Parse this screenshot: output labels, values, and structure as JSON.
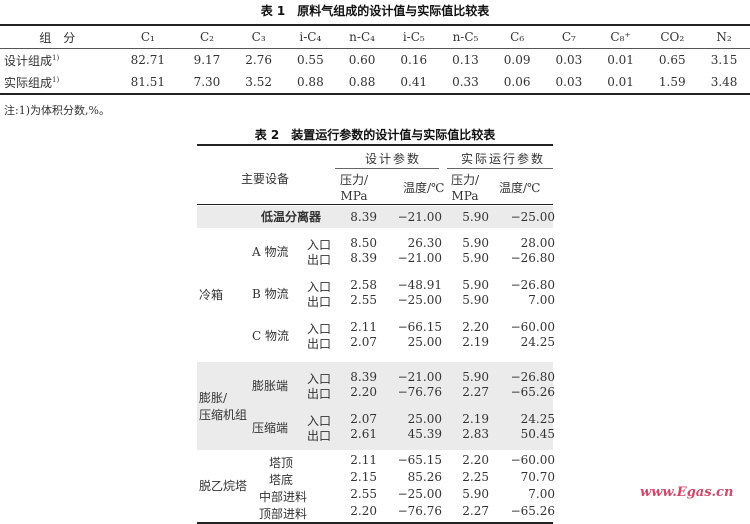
{
  "table1": {
    "title": "表 1　原料气组成的设计值与实际值比较表",
    "headers": [
      "组　分",
      "C₁",
      "C₂",
      "C₃",
      "i-C₄",
      "n-C₄",
      "i-C₅",
      "n-C₅",
      "C₆",
      "C₇",
      "C₈⁺",
      "CO₂",
      "N₂"
    ],
    "rows": [
      {
        "label": "设计组成",
        "sup": "1)",
        "values": [
          "82.71",
          "9.17",
          "2.76",
          "0.55",
          "0.60",
          "0.16",
          "0.13",
          "0.09",
          "0.03",
          "0.01",
          "0.65",
          "3.15"
        ]
      },
      {
        "label": "实际组成",
        "sup": "1)",
        "values": [
          "81.51",
          "7.30",
          "3.52",
          "0.88",
          "0.88",
          "0.41",
          "0.33",
          "0.06",
          "0.03",
          "0.01",
          "1.59",
          "3.48"
        ]
      }
    ],
    "note": "注:1)为体积分数,%。"
  },
  "table2": {
    "title": "表 2　装置运行参数的设计值与实际值比较表",
    "header": {
      "equipment": "主要设备",
      "design": "设计参数",
      "actual": "实际运行参数",
      "pressure": "压力/\nMPa",
      "temperature": "温度/℃"
    },
    "groups": [
      {
        "name": "低温分离器",
        "shaded": true,
        "subs": [
          {
            "name": "",
            "rows": [
              {
                "io": "",
                "v": [
                  "8.39",
                  "−21.00",
                  "5.90",
                  "−25.00"
                ]
              }
            ]
          }
        ]
      },
      {
        "name": "冷箱",
        "shaded": false,
        "subs": [
          {
            "name": "A 物流",
            "rows": [
              {
                "io": "入口",
                "v": [
                  "8.50",
                  "26.30",
                  "5.90",
                  "28.00"
                ]
              },
              {
                "io": "出口",
                "v": [
                  "8.39",
                  "−21.00",
                  "5.90",
                  "−26.80"
                ]
              }
            ]
          },
          {
            "name": "B 物流",
            "rows": [
              {
                "io": "入口",
                "v": [
                  "2.58",
                  "−48.91",
                  "5.90",
                  "−26.80"
                ]
              },
              {
                "io": "出口",
                "v": [
                  "2.55",
                  "−25.00",
                  "5.90",
                  "7.00"
                ]
              }
            ]
          },
          {
            "name": "C 物流",
            "rows": [
              {
                "io": "入口",
                "v": [
                  "2.11",
                  "−66.15",
                  "2.20",
                  "−60.00"
                ]
              },
              {
                "io": "出口",
                "v": [
                  "2.07",
                  "25.00",
                  "2.19",
                  "24.25"
                ]
              }
            ]
          }
        ]
      },
      {
        "name": "膨胀/\n压缩机组",
        "shaded": true,
        "subs": [
          {
            "name": "膨胀端",
            "rows": [
              {
                "io": "入口",
                "v": [
                  "8.39",
                  "−21.00",
                  "5.90",
                  "−26.80"
                ]
              },
              {
                "io": "出口",
                "v": [
                  "2.20",
                  "−76.76",
                  "2.27",
                  "−65.26"
                ]
              }
            ]
          },
          {
            "name": "压缩端",
            "rows": [
              {
                "io": "入口",
                "v": [
                  "2.07",
                  "25.00",
                  "2.19",
                  "24.25"
                ]
              },
              {
                "io": "出口",
                "v": [
                  "2.61",
                  "45.39",
                  "2.83",
                  "50.45"
                ]
              }
            ]
          }
        ]
      },
      {
        "name": "脱乙烷塔",
        "shaded": false,
        "subs": [
          {
            "name": "塔顶",
            "rows": [
              {
                "io": "",
                "v": [
                  "2.11",
                  "−65.15",
                  "2.20",
                  "−60.00"
                ]
              }
            ]
          },
          {
            "name": "塔底",
            "rows": [
              {
                "io": "",
                "v": [
                  "2.15",
                  "85.26",
                  "2.25",
                  "70.70"
                ]
              }
            ]
          },
          {
            "name": "中部进料",
            "rows": [
              {
                "io": "",
                "v": [
                  "2.55",
                  "−25.00",
                  "5.90",
                  "7.00"
                ]
              }
            ]
          },
          {
            "name": "顶部进料",
            "rows": [
              {
                "io": "",
                "v": [
                  "2.20",
                  "−76.76",
                  "2.27",
                  "−65.26"
                ]
              }
            ]
          }
        ]
      }
    ]
  },
  "watermark": "www.Egas.cn"
}
